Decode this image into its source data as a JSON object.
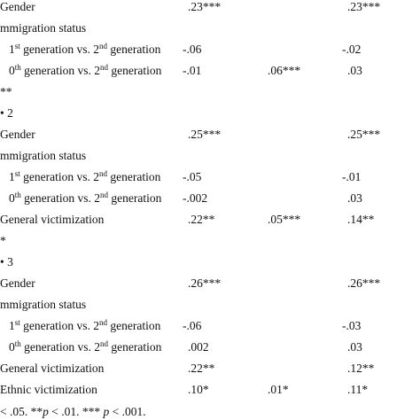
{
  "table": {
    "rows": [
      {
        "label": "Gender",
        "values": [
          ".23***",
          null,
          ".23***"
        ]
      },
      {
        "label": "mmigration status",
        "values": [
          null,
          null,
          null
        ]
      },
      {
        "label": [
          "1",
          "st",
          " generation vs. 2",
          "nd",
          " generation"
        ],
        "values": [
          "-.06",
          null,
          "-.02"
        ]
      },
      {
        "label": [
          "0",
          "th",
          " generation vs. 2",
          "nd",
          " generation"
        ],
        "values": [
          "-.01",
          ".06***",
          ".03"
        ]
      },
      {
        "label": "**",
        "values": [
          null,
          null,
          null
        ]
      },
      {
        "label": "• 2",
        "values": [
          null,
          null,
          null
        ]
      },
      {
        "label": "Gender",
        "values": [
          ".25***",
          null,
          ".25***"
        ]
      },
      {
        "label": "mmigration status",
        "values": [
          null,
          null,
          null
        ]
      },
      {
        "label": [
          "1",
          "st",
          " generation vs. 2",
          "nd",
          " generation"
        ],
        "values": [
          "-.05",
          null,
          "-.01"
        ]
      },
      {
        "label": [
          "0",
          "th",
          " generation vs. 2",
          "nd",
          " generation"
        ],
        "values": [
          "-.002",
          null,
          ".03"
        ]
      },
      {
        "label": "General victimization",
        "values": [
          ".22**",
          ".05***",
          ".14**"
        ]
      },
      {
        "label": "*",
        "values": [
          null,
          null,
          null
        ]
      },
      {
        "label": "• 3",
        "values": [
          null,
          null,
          null
        ]
      },
      {
        "label": "Gender",
        "values": [
          ".26***",
          null,
          ".26***"
        ]
      },
      {
        "label": "mmigration status",
        "values": [
          null,
          null,
          null
        ]
      },
      {
        "label": [
          "1",
          "st",
          " generation vs. 2",
          "nd",
          " generation"
        ],
        "values": [
          "-.06",
          null,
          "-.03"
        ]
      },
      {
        "label": [
          "0",
          "th",
          " generation vs. 2",
          "nd",
          " generation"
        ],
        "values": [
          ".002",
          null,
          ".03"
        ]
      },
      {
        "label": "General victimization",
        "values": [
          ".22**",
          null,
          ".12**"
        ]
      },
      {
        "label": "Ethnic victimization",
        "values": [
          ".10*",
          ".01*",
          ".11*"
        ]
      }
    ],
    "footnote": [
      "< .05. **",
      "p",
      " < .01. *** ",
      "p",
      " < .001."
    ]
  }
}
